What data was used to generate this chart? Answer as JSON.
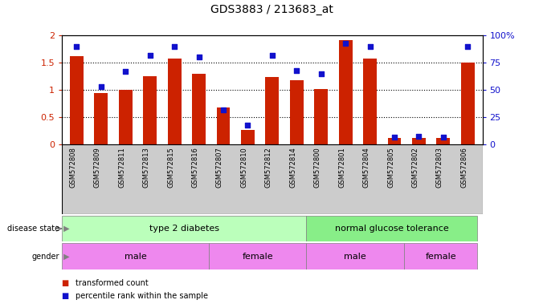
{
  "title": "GDS3883 / 213683_at",
  "samples": [
    "GSM572808",
    "GSM572809",
    "GSM572811",
    "GSM572813",
    "GSM572815",
    "GSM572816",
    "GSM572807",
    "GSM572810",
    "GSM572812",
    "GSM572814",
    "GSM572800",
    "GSM572801",
    "GSM572804",
    "GSM572805",
    "GSM572802",
    "GSM572803",
    "GSM572806"
  ],
  "transformed_count": [
    1.62,
    0.95,
    1.0,
    1.25,
    1.57,
    1.3,
    0.68,
    0.27,
    1.24,
    1.18,
    1.02,
    1.92,
    1.57,
    0.12,
    0.13,
    0.13,
    1.5
  ],
  "percentile_rank": [
    90,
    53,
    67,
    82,
    90,
    80,
    32,
    18,
    82,
    68,
    65,
    93,
    90,
    7,
    8,
    7,
    90
  ],
  "bar_color": "#cc2200",
  "dot_color": "#1111cc",
  "ylim_left": [
    0,
    2
  ],
  "ylim_right": [
    0,
    100
  ],
  "yticks_left": [
    0,
    0.5,
    1.0,
    1.5,
    2.0
  ],
  "yticks_right": [
    0,
    25,
    50,
    75,
    100
  ],
  "ytick_labels_left": [
    "0",
    "0.5",
    "1",
    "1.5",
    "2"
  ],
  "ytick_labels_right": [
    "0",
    "25",
    "50",
    "75",
    "100%"
  ],
  "disease_state_ranges": [
    [
      0,
      10
    ],
    [
      10,
      17
    ]
  ],
  "disease_state_labels": [
    "type 2 diabetes",
    "normal glucose tolerance"
  ],
  "disease_colors": [
    "#bbffbb",
    "#88ee88"
  ],
  "gender_ranges": [
    [
      0,
      6
    ],
    [
      6,
      10
    ],
    [
      10,
      14
    ],
    [
      14,
      17
    ]
  ],
  "gender_labels": [
    "male",
    "female",
    "male",
    "female"
  ],
  "gender_color": "#ee88ee",
  "legend_items": [
    "transformed count",
    "percentile rank within the sample"
  ],
  "legend_colors": [
    "#cc2200",
    "#1111cc"
  ],
  "left_ylabel_color": "#cc2200",
  "right_ylabel_color": "#1111cc",
  "bg_color": "#ffffff",
  "tick_label_area_color": "#cccccc",
  "grid_dotted_at": [
    0.5,
    1.0,
    1.5
  ]
}
